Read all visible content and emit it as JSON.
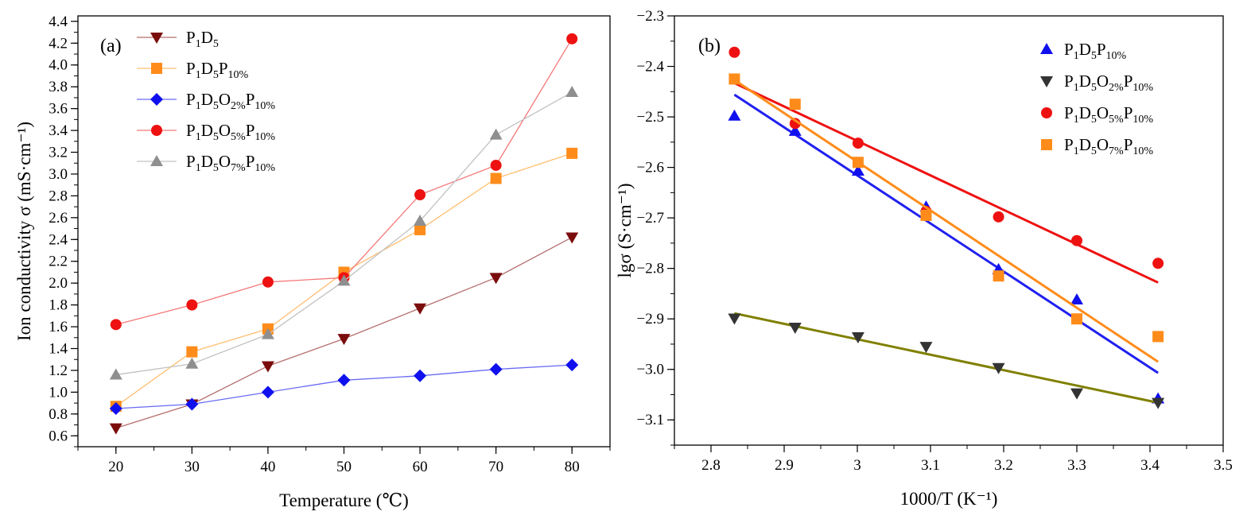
{
  "chart_data": [
    {
      "type": "line",
      "panel_label": "(a)",
      "xlabel": "Temperature (℃)",
      "ylabel": "Ion conductivity σ (mS·cm⁻¹)",
      "xlim": [
        15,
        85
      ],
      "ylim": [
        0.5,
        4.45
      ],
      "xticks": [
        20,
        30,
        40,
        50,
        60,
        70,
        80
      ],
      "yticks": [
        0.6,
        0.8,
        1.0,
        1.2,
        1.4,
        1.6,
        1.8,
        2.0,
        2.2,
        2.4,
        2.6,
        2.8,
        3.0,
        3.2,
        3.4,
        3.6,
        3.8,
        4.0,
        4.2,
        4.4
      ],
      "legend_position": "top-left",
      "x": [
        20,
        30,
        40,
        50,
        60,
        70,
        80
      ],
      "series": [
        {
          "name": "P1D5",
          "legend": [
            [
              "P",
              ""
            ],
            [
              "1",
              "sub"
            ],
            [
              "D",
              ""
            ],
            [
              "5",
              "sub"
            ]
          ],
          "color": "#7b0c0c",
          "line_color": "#b56e6e",
          "marker": "triangle-down",
          "values": [
            0.67,
            0.89,
            1.24,
            1.49,
            1.77,
            2.05,
            2.42
          ]
        },
        {
          "name": "P1D5P10%",
          "legend": [
            [
              "P",
              ""
            ],
            [
              "1",
              "sub"
            ],
            [
              "D",
              ""
            ],
            [
              "5",
              "sub"
            ],
            [
              "P",
              ""
            ],
            [
              "10%",
              "sub"
            ]
          ],
          "color": "#ff8c1a",
          "line_color": "#ffbf70",
          "marker": "square",
          "values": [
            0.87,
            1.37,
            1.58,
            2.1,
            2.49,
            2.96,
            3.19
          ]
        },
        {
          "name": "P1D5O2%P10%",
          "legend": [
            [
              "P",
              ""
            ],
            [
              "1",
              "sub"
            ],
            [
              "D",
              ""
            ],
            [
              "5",
              "sub"
            ],
            [
              "O",
              ""
            ],
            [
              "2%",
              "sub"
            ],
            [
              "P",
              ""
            ],
            [
              "10%",
              "sub"
            ]
          ],
          "color": "#1010ee",
          "line_color": "#6a6af5",
          "marker": "diamond",
          "values": [
            0.85,
            0.89,
            1.0,
            1.11,
            1.15,
            1.21,
            1.25
          ]
        },
        {
          "name": "P1D5O5%P10%",
          "legend": [
            [
              "P",
              ""
            ],
            [
              "1",
              "sub"
            ],
            [
              "D",
              ""
            ],
            [
              "5",
              "sub"
            ],
            [
              "O",
              ""
            ],
            [
              "5%",
              "sub"
            ],
            [
              "P",
              ""
            ],
            [
              "10%",
              "sub"
            ]
          ],
          "color": "#ee1111",
          "line_color": "#f57878",
          "marker": "circle",
          "values": [
            1.62,
            1.8,
            2.01,
            2.05,
            2.81,
            3.08,
            4.24
          ]
        },
        {
          "name": "P1D5O7%P10%",
          "legend": [
            [
              "P",
              ""
            ],
            [
              "1",
              "sub"
            ],
            [
              "D",
              ""
            ],
            [
              "5",
              "sub"
            ],
            [
              "O",
              ""
            ],
            [
              "7%",
              "sub"
            ],
            [
              "P",
              ""
            ],
            [
              "10%",
              "sub"
            ]
          ],
          "color": "#8f8f8f",
          "line_color": "#c2c2c2",
          "marker": "triangle-up",
          "values": [
            1.16,
            1.26,
            1.53,
            2.02,
            2.57,
            3.36,
            3.75
          ]
        }
      ]
    },
    {
      "type": "scatter",
      "panel_label": "(b)",
      "xlabel": "1000/T (K⁻¹)",
      "ylabel": "lgσ (S·cm⁻¹)",
      "xlim": [
        2.75,
        3.5
      ],
      "ylim": [
        -3.15,
        -2.3
      ],
      "xticks": [
        2.8,
        2.9,
        3.0,
        3.1,
        3.2,
        3.3,
        3.4,
        3.5
      ],
      "yticks": [
        -2.3,
        -2.4,
        -2.5,
        -2.6,
        -2.7,
        -2.8,
        -2.9,
        -3.0,
        -3.1
      ],
      "legend_position": "top-right",
      "x": [
        2.832,
        2.915,
        3.001,
        3.094,
        3.193,
        3.3,
        3.411
      ],
      "series": [
        {
          "name": "P1D5P10%",
          "legend": [
            [
              "P",
              ""
            ],
            [
              "1",
              "sub"
            ],
            [
              "D",
              ""
            ],
            [
              "5",
              "sub"
            ],
            [
              "P",
              ""
            ],
            [
              "10%",
              "sub"
            ]
          ],
          "color": "#1010ee",
          "fit_color": "#2020f0",
          "marker": "triangle-up",
          "values": [
            -2.498,
            -2.528,
            -2.607,
            -2.678,
            -2.802,
            -2.862,
            -3.058
          ],
          "fit": [
            -2.456,
            -3.007
          ]
        },
        {
          "name": "P1D5O2%P10%",
          "legend": [
            [
              "P",
              ""
            ],
            [
              "1",
              "sub"
            ],
            [
              "D",
              ""
            ],
            [
              "5",
              "sub"
            ],
            [
              "O",
              ""
            ],
            [
              "2%",
              "sub"
            ],
            [
              "P",
              ""
            ],
            [
              "10%",
              "sub"
            ]
          ],
          "color": "#333333",
          "fit_color": "#808000",
          "marker": "triangle-down",
          "values": [
            -2.899,
            -2.917,
            -2.936,
            -2.955,
            -2.997,
            -3.047,
            -3.066
          ],
          "fit": [
            -2.889,
            -3.066
          ]
        },
        {
          "name": "P1D5O5%P10%",
          "legend": [
            [
              "P",
              ""
            ],
            [
              "1",
              "sub"
            ],
            [
              "D",
              ""
            ],
            [
              "5",
              "sub"
            ],
            [
              "O",
              ""
            ],
            [
              "5%",
              "sub"
            ],
            [
              "P",
              ""
            ],
            [
              "10%",
              "sub"
            ]
          ],
          "color": "#ee1111",
          "fit_color": "#ee1111",
          "marker": "circle",
          "values": [
            -2.372,
            -2.513,
            -2.552,
            -2.687,
            -2.698,
            -2.745,
            -2.79
          ],
          "fit": [
            -2.433,
            -2.828
          ]
        },
        {
          "name": "P1D5O7%P10%",
          "legend": [
            [
              "P",
              ""
            ],
            [
              "1",
              "sub"
            ],
            [
              "D",
              ""
            ],
            [
              "5",
              "sub"
            ],
            [
              "O",
              ""
            ],
            [
              "7%",
              "sub"
            ],
            [
              "P",
              ""
            ],
            [
              "10%",
              "sub"
            ]
          ],
          "color": "#ff8c1a",
          "fit_color": "#ff8c1a",
          "marker": "square",
          "values": [
            -2.425,
            -2.475,
            -2.59,
            -2.695,
            -2.815,
            -2.9,
            -2.935
          ],
          "fit": [
            -2.427,
            -2.985
          ]
        }
      ]
    }
  ]
}
